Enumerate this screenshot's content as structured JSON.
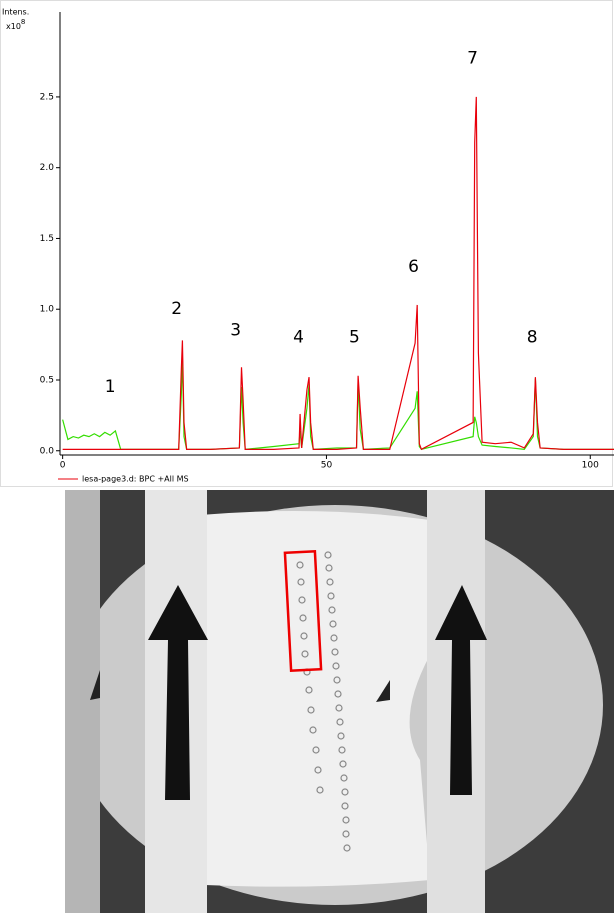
{
  "chart_data": {
    "type": "line",
    "y_label": "Intens.",
    "y_scale_label": {
      "base": "x10",
      "exponent": "8"
    },
    "x": [
      0,
      1,
      2,
      3,
      4,
      5,
      6,
      7,
      8,
      9,
      10,
      11,
      17,
      22,
      22.5,
      22.7,
      23,
      23.5,
      28,
      33.5,
      33.9,
      34.2,
      34.6,
      40,
      44.8,
      45,
      45.3,
      46.3,
      46.7,
      47,
      47.5,
      52,
      55.7,
      56,
      56.4,
      57,
      62,
      66.8,
      67.2,
      67.6,
      68,
      77.8,
      78.1,
      78.4,
      78.8,
      79.5,
      82,
      85,
      87.5,
      89.2,
      89.6,
      90,
      90.5,
      95,
      100,
      105
    ],
    "series": [
      {
        "name": "lesa-page3.d: BPC +All MS",
        "color": "#e8000b",
        "values": [
          0.01,
          0.01,
          0.01,
          0.01,
          0.01,
          0.01,
          0.01,
          0.01,
          0.01,
          0.01,
          0.01,
          0.01,
          0.01,
          0.01,
          0.58,
          0.78,
          0.2,
          0.01,
          0.01,
          0.02,
          0.59,
          0.36,
          0.01,
          0.01,
          0.02,
          0.26,
          0.02,
          0.43,
          0.52,
          0.2,
          0.01,
          0.01,
          0.02,
          0.53,
          0.3,
          0.01,
          0.01,
          0.76,
          1.03,
          0.05,
          0.01,
          0.2,
          2.18,
          2.5,
          0.69,
          0.06,
          0.05,
          0.06,
          0.02,
          0.12,
          0.52,
          0.2,
          0.02,
          0.01,
          0.01,
          0.01
        ]
      },
      {
        "color": "#33dd00",
        "values": [
          0.22,
          0.08,
          0.1,
          0.09,
          0.11,
          0.1,
          0.12,
          0.1,
          0.13,
          0.11,
          0.14,
          0.01,
          0.01,
          0.01,
          0.4,
          0.66,
          0.1,
          0.01,
          0.01,
          0.02,
          0.45,
          0.2,
          0.01,
          0.03,
          0.05,
          0.14,
          0.02,
          0.3,
          0.47,
          0.1,
          0.01,
          0.02,
          0.02,
          0.48,
          0.15,
          0.01,
          0.02,
          0.3,
          0.42,
          0.03,
          0.01,
          0.1,
          0.24,
          0.2,
          0.1,
          0.04,
          0.03,
          0.02,
          0.01,
          0.1,
          0.51,
          0.1,
          0.02,
          0.01,
          0.01,
          0.01
        ]
      }
    ],
    "annotations": [
      {
        "text": "1",
        "x": 9,
        "y": 0.45
      },
      {
        "text": "2",
        "x": 21.6,
        "y": 1.0
      },
      {
        "text": "3",
        "x": 32.8,
        "y": 0.85
      },
      {
        "text": "4",
        "x": 44.7,
        "y": 0.8
      },
      {
        "text": "5",
        "x": 55.3,
        "y": 0.8
      },
      {
        "text": "6",
        "x": 66.5,
        "y": 1.3
      },
      {
        "text": "7",
        "x": 77.7,
        "y": 2.77
      },
      {
        "text": "8",
        "x": 89,
        "y": 0.8
      }
    ],
    "xlim": [
      -0.5,
      104.5
    ],
    "ylim": [
      -0.03,
      3.1
    ],
    "xticks": [
      0,
      50,
      100
    ],
    "yticks": [
      {
        "value": 0,
        "label": "0.0"
      },
      0.5,
      {
        "value": 1,
        "label": "1.0"
      },
      1.5,
      {
        "value": 2,
        "label": "2.0"
      },
      2.5
    ]
  }
}
